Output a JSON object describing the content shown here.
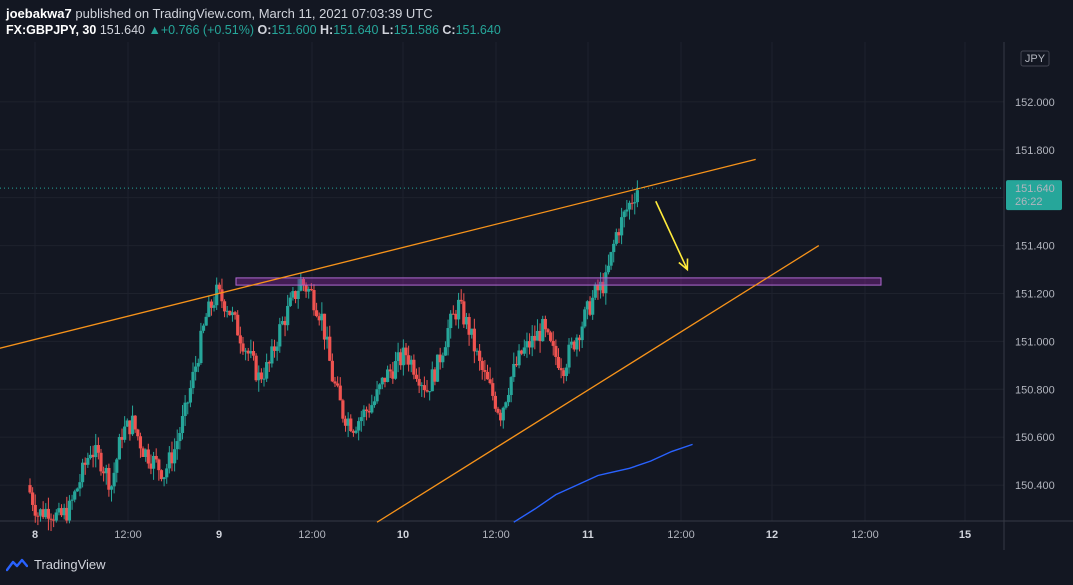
{
  "header": {
    "author": "joebakwa7",
    "published": "published on TradingView.com, March 11, 2021 07:03:39 UTC",
    "symbol": "FX:GBPJPY, 30",
    "last": "151.640",
    "change": "+0.766 (+0.51%)",
    "o_label": "O:",
    "o": "151.600",
    "h_label": "H:",
    "h": "151.640",
    "l_label": "L:",
    "l": "151.586",
    "c_label": "C:",
    "c": "151.640"
  },
  "footer": {
    "brand": "TradingView",
    "icon": "tradingview-logo-icon"
  },
  "colors": {
    "background": "#131722",
    "grid": "#1e222d",
    "up": "#26a69a",
    "down": "#ef5350",
    "trendline": "#f7931a",
    "zone": "#9c27b0",
    "arrow": "#ffeb3b",
    "ma": "#2962ff"
  },
  "chart_data": {
    "type": "candlestick",
    "currency_label": "JPY",
    "ylim": [
      150.25,
      152.25
    ],
    "y_ticks": [
      "152.000",
      "151.800",
      "151.600",
      "151.400",
      "151.200",
      "151.000",
      "150.800",
      "150.600",
      "150.400"
    ],
    "x_ticks": [
      {
        "label": "8",
        "day": true
      },
      {
        "label": "12:00",
        "day": false
      },
      {
        "label": "9",
        "day": true
      },
      {
        "label": "12:00",
        "day": false
      },
      {
        "label": "10",
        "day": true
      },
      {
        "label": "12:00",
        "day": false
      },
      {
        "label": "11",
        "day": true
      },
      {
        "label": "12:00",
        "day": false
      },
      {
        "label": "12",
        "day": true
      },
      {
        "label": "12:00",
        "day": false
      },
      {
        "label": "15",
        "day": true
      }
    ],
    "price_tag": {
      "value": 151.64,
      "label": "151.640",
      "countdown": "26:22"
    },
    "zone": {
      "low": 151.235,
      "high": 151.265
    },
    "close_path": [
      [
        0,
        150.4
      ],
      [
        1,
        150.28
      ],
      [
        2,
        150.3
      ],
      [
        3,
        150.26
      ],
      [
        4,
        150.3
      ],
      [
        5,
        150.42
      ],
      [
        6,
        150.55
      ],
      [
        7,
        150.5
      ],
      [
        8,
        150.4
      ],
      [
        9,
        150.62
      ],
      [
        10,
        150.66
      ],
      [
        11,
        150.55
      ],
      [
        12,
        150.5
      ],
      [
        13,
        150.45
      ],
      [
        14,
        150.55
      ],
      [
        15,
        150.7
      ],
      [
        16,
        150.9
      ],
      [
        17,
        151.1
      ],
      [
        18,
        151.2
      ],
      [
        19,
        151.15
      ],
      [
        20,
        151.05
      ],
      [
        21,
        150.95
      ],
      [
        22,
        150.85
      ],
      [
        23,
        150.9
      ],
      [
        24,
        151.05
      ],
      [
        25,
        151.15
      ],
      [
        26,
        151.25
      ],
      [
        27,
        151.2
      ],
      [
        28,
        151.1
      ],
      [
        29,
        150.85
      ],
      [
        30,
        150.7
      ],
      [
        31,
        150.65
      ],
      [
        32,
        150.7
      ],
      [
        33,
        150.75
      ],
      [
        34,
        150.85
      ],
      [
        35,
        150.9
      ],
      [
        36,
        150.95
      ],
      [
        37,
        150.88
      ],
      [
        38,
        150.8
      ],
      [
        39,
        150.9
      ],
      [
        40,
        151.05
      ],
      [
        41,
        151.15
      ],
      [
        42,
        151.05
      ],
      [
        43,
        150.9
      ],
      [
        44,
        150.8
      ],
      [
        45,
        150.7
      ],
      [
        46,
        150.85
      ],
      [
        47,
        150.95
      ],
      [
        48,
        151.0
      ],
      [
        49,
        151.05
      ],
      [
        50,
        150.95
      ],
      [
        51,
        150.9
      ],
      [
        52,
        151.0
      ],
      [
        53,
        151.1
      ],
      [
        54,
        151.2
      ],
      [
        55,
        151.25
      ],
      [
        56,
        151.45
      ],
      [
        57,
        151.55
      ],
      [
        58,
        151.64
      ]
    ],
    "trendlines": [
      {
        "from": [
          -3.0,
          150.97
        ],
        "to": [
          69.0,
          151.76
        ]
      },
      {
        "from": [
          33.0,
          150.245
        ],
        "to": [
          75.0,
          151.4
        ]
      }
    ],
    "arrow": {
      "from": [
        59.5,
        151.585
      ],
      "to": [
        62.5,
        151.3
      ]
    },
    "moving_average": [
      [
        46,
        150.245
      ],
      [
        48,
        150.3
      ],
      [
        50,
        150.36
      ],
      [
        52,
        150.4
      ],
      [
        54,
        150.44
      ],
      [
        55,
        150.45
      ],
      [
        57,
        150.47
      ],
      [
        59,
        150.5
      ],
      [
        61,
        150.54
      ],
      [
        63,
        150.57
      ]
    ]
  }
}
